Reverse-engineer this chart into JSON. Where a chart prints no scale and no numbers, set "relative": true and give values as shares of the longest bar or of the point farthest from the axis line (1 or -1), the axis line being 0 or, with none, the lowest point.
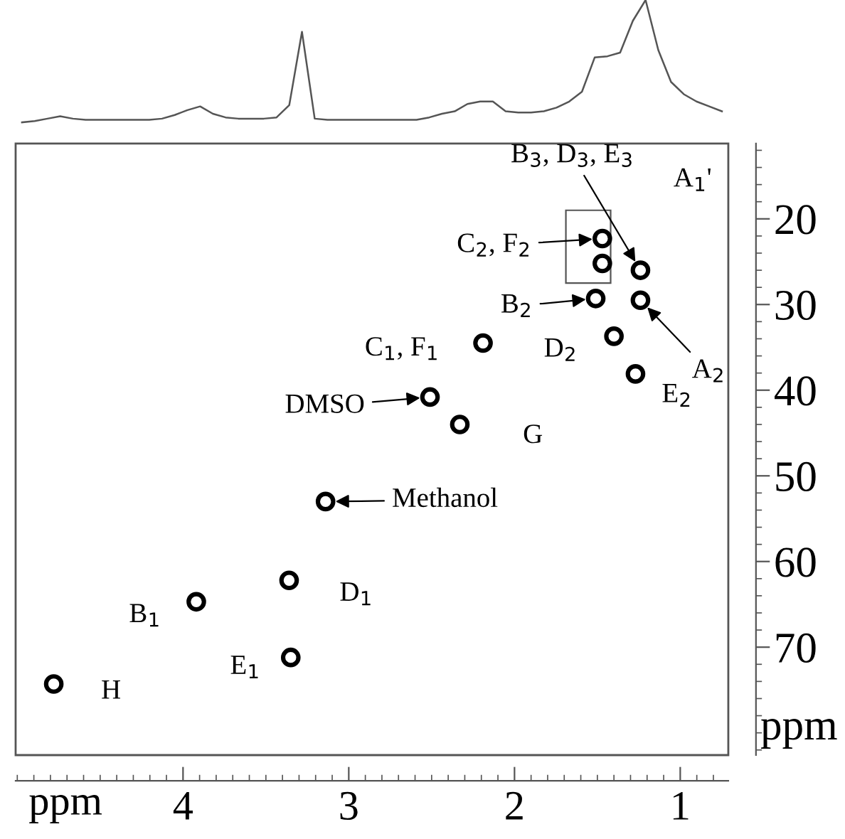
{
  "chart_data": [
    {
      "type": "line",
      "relative": true,
      "categories": [
        null,
        null,
        null,
        null,
        null,
        null,
        null,
        null,
        null,
        null,
        null,
        null,
        null,
        null,
        null,
        null,
        null,
        null,
        null,
        null,
        null,
        null,
        null,
        null,
        null,
        null,
        null,
        null,
        null,
        null,
        null,
        null,
        null,
        null,
        null,
        null,
        null,
        null,
        null,
        null,
        null,
        null,
        null,
        null,
        null,
        null,
        null,
        null,
        null,
        null,
        null,
        null,
        null,
        null,
        null,
        null
      ],
      "series": [
        {
          "color": "#555555",
          "values": [
            0,
            0.01,
            0.03,
            0.05,
            0.03,
            0.02,
            0.02,
            0.02,
            0.02,
            0.02,
            0.02,
            0.03,
            0.06,
            0.1,
            0.13,
            0.07,
            0.04,
            0.03,
            0.03,
            0.03,
            0.04,
            0.14,
            0.74,
            0.03,
            0.02,
            0.02,
            0.02,
            0.02,
            0.02,
            0.02,
            0.02,
            0.02,
            0.04,
            0.07,
            0.09,
            0.15,
            0.17,
            0.17,
            0.09,
            0.08,
            0.08,
            0.09,
            0.12,
            0.17,
            0.25,
            0.53,
            0.54,
            0.57,
            0.83,
            1.0,
            0.59,
            0.33,
            0.23,
            0.17,
            0.13,
            0.09
          ]
        }
      ]
    },
    {
      "type": "scatter",
      "marker": "circle",
      "xlabel": "ppm",
      "ylabel": "ppm",
      "xlim": [
        5.01,
        0.71
      ],
      "ylim": [
        82.6,
        11.2
      ],
      "xticks": [
        1,
        2,
        3,
        4
      ],
      "yticks": [
        20,
        30,
        40,
        50,
        60,
        70
      ],
      "series": [
        {
          "color": "#000000",
          "x": [
            4.78,
            3.92,
            3.35,
            3.36,
            3.14,
            2.51,
            2.33,
            2.19,
            1.4,
            1.27,
            1.51,
            1.24,
            1.24,
            1.47,
            1.47
          ],
          "values": [
            74.3,
            64.7,
            71.2,
            62.2,
            53.0,
            40.8,
            44.0,
            34.5,
            33.7,
            38.1,
            29.3,
            29.5,
            26.0,
            25.2,
            22.3
          ]
        }
      ],
      "annotations": [
        {
          "text": "H",
          "x": 4.78,
          "y": 74.3
        },
        {
          "text": "B$_{1}$",
          "x": 3.92,
          "y": 64.7
        },
        {
          "text": "E$_{1}$",
          "x": 3.35,
          "y": 71.2
        },
        {
          "text": "D$_{1}$",
          "x": 3.36,
          "y": 62.2
        },
        {
          "text": "G",
          "x": 2.33,
          "y": 44.0
        },
        {
          "text": "C$_{1}$, F$_{1}$",
          "x": 2.19,
          "y": 34.5
        },
        {
          "text": "D$_{2}$",
          "x": 1.4,
          "y": 33.7
        },
        {
          "text": "E$_{2}$",
          "x": 1.27,
          "y": 38.1
        },
        "A$_{1}$'",
        {
          "text": "C$_{2}$, F$_{2}$",
          "x": 1.47,
          "y": 22.3
        },
        {
          "text": "B$_{2}$",
          "x": 1.51,
          "y": 29.3
        },
        {
          "text": "A$_{2}$",
          "x": 1.24,
          "y": 29.5
        },
        {
          "text": "DMSO",
          "x": 2.51,
          "y": 40.8
        },
        {
          "text": "Methanol",
          "x": 3.14,
          "y": 53.0
        },
        {
          "text": "B$_{3}$, D$_{3}$, E$_{3}$",
          "x": 1.24,
          "y": 26.0
        }
      ]
    }
  ]
}
